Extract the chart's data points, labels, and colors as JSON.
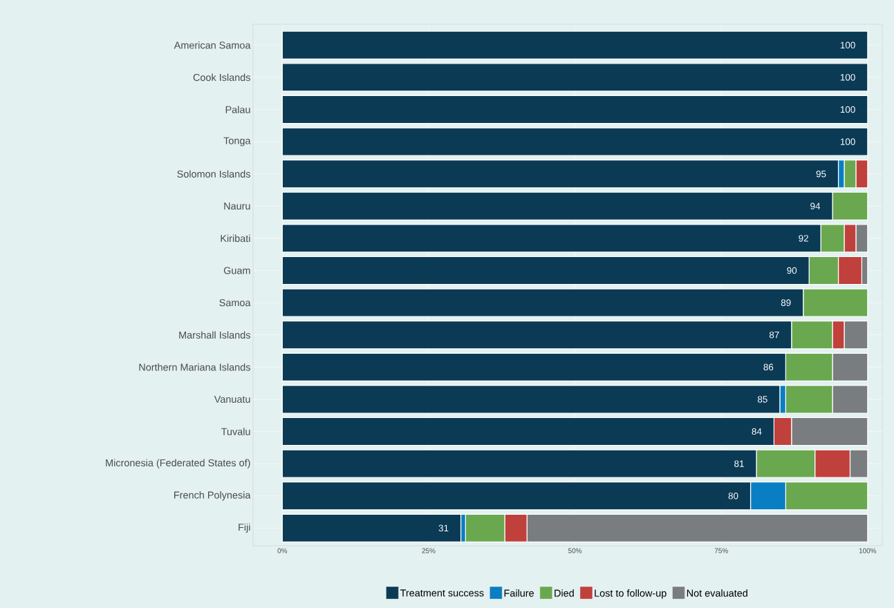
{
  "chart_data": {
    "type": "bar",
    "orientation": "horizontal",
    "stacked": true,
    "grid": true,
    "legend": "bottom",
    "categories": [
      "American Samoa",
      "Cook Islands",
      "Palau",
      "Tonga",
      "Solomon Islands",
      "Nauru",
      "Kiribati",
      "Guam",
      "Samoa",
      "Marshall Islands",
      "Northern Mariana Islands",
      "Vanuatu",
      "Tuvalu",
      "Micronesia (Federated States of)",
      "French Polynesia",
      "Fiji"
    ],
    "xlim": [
      -5,
      102.5
    ],
    "xticks": [
      {
        "value": 0,
        "label": "0%"
      },
      {
        "value": 25,
        "label": "25%"
      },
      {
        "value": 50,
        "label": "50%"
      },
      {
        "value": 75,
        "label": "75%"
      },
      {
        "value": 100,
        "label": "100%"
      }
    ],
    "series": [
      {
        "name": "Treatment success",
        "color": "#0b3a55",
        "values": [
          100,
          100,
          100,
          100,
          95,
          94,
          92,
          90,
          89,
          87,
          86,
          85,
          84,
          81,
          80,
          30.5
        ],
        "value_labels": [
          "100",
          "100",
          "100",
          "100",
          "95",
          "94",
          "92",
          "90",
          "89",
          "87",
          "86",
          "85",
          "84",
          "81",
          "80",
          "31"
        ]
      },
      {
        "name": "Failure",
        "color": "#0a7ec2",
        "values": [
          0,
          0,
          0,
          0,
          1,
          0,
          0,
          0,
          0,
          0,
          0,
          1,
          0,
          0,
          6,
          0.8
        ]
      },
      {
        "name": "Died",
        "color": "#6aa84f",
        "values": [
          0,
          0,
          0,
          0,
          2,
          6,
          4,
          5,
          11,
          7,
          8,
          8,
          0,
          10,
          14,
          6.7
        ]
      },
      {
        "name": "Lost to follow-up",
        "color": "#c0403b",
        "values": [
          0,
          0,
          0,
          0,
          2,
          0,
          2,
          4,
          0,
          2,
          0,
          0,
          3,
          6,
          0,
          3.8
        ]
      },
      {
        "name": "Not evaluated",
        "color": "#7a7d80",
        "values": [
          0,
          0,
          0,
          0,
          0,
          0,
          2,
          1,
          0,
          4,
          6,
          6,
          13,
          3,
          0,
          58.2
        ]
      }
    ]
  }
}
